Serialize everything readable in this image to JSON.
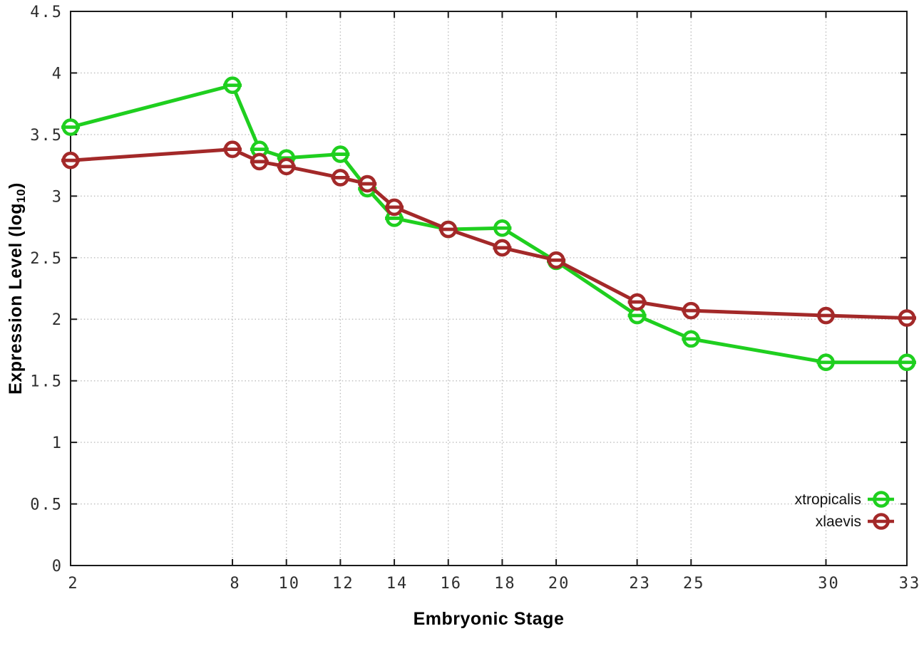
{
  "chart_data": {
    "type": "line",
    "title": "",
    "xlabel": "Embryonic Stage",
    "ylabel": "Expression Level (log10)",
    "ylabel_display": {
      "prefix": "Expression Level (log",
      "subscript": "10",
      "suffix": ")"
    },
    "xlim": [
      2,
      33
    ],
    "ylim": [
      0,
      4.5
    ],
    "grid": true,
    "legend_position": "inside-bottom-right",
    "xticks": [
      2,
      8,
      10,
      12,
      14,
      16,
      18,
      20,
      23,
      25,
      30,
      33
    ],
    "xtick_labels": [
      "2",
      "8",
      "10",
      "12",
      "14",
      "16",
      "18",
      "20",
      "23",
      "25",
      "30",
      "33"
    ],
    "yticks": [
      0,
      0.5,
      1,
      1.5,
      2,
      2.5,
      3,
      3.5,
      4,
      4.5
    ],
    "ytick_labels": [
      "0",
      "0.5",
      "1",
      "1.5",
      "2",
      "2.5",
      "3",
      "3.5",
      "4",
      "4.5"
    ],
    "x": [
      2,
      8,
      9,
      10,
      12,
      13,
      14,
      16,
      18,
      20,
      23,
      25,
      30,
      33
    ],
    "series": [
      {
        "name": "xtropicalis",
        "color": "#1fcf1f",
        "values": [
          3.56,
          3.9,
          3.38,
          3.31,
          3.34,
          3.06,
          2.82,
          2.73,
          2.74,
          2.47,
          2.03,
          1.84,
          1.65,
          1.65
        ]
      },
      {
        "name": "xlaevis",
        "color": "#a32929",
        "values": [
          3.29,
          3.38,
          3.28,
          3.24,
          3.15,
          3.1,
          2.91,
          2.73,
          2.58,
          2.48,
          2.14,
          2.07,
          2.03,
          2.01
        ]
      }
    ],
    "style": {
      "border_color": "#1b1b1b",
      "grid_color": "#bdbdbd",
      "tick_label_color": "#2e2e2e"
    }
  }
}
